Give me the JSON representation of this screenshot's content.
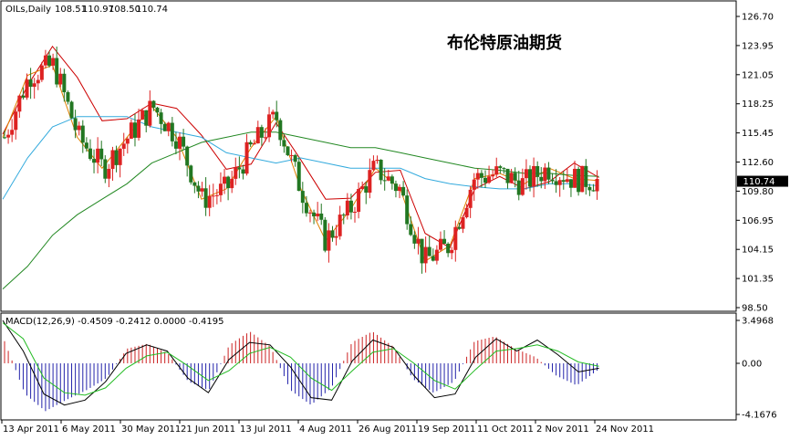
{
  "chart_data": [
    {
      "type": "candlestick",
      "symbol_line": "OILs,Daily",
      "ohlc_readout": [
        "108.51",
        "110.97",
        "108.50",
        "110.74"
      ],
      "title": "布伦特原油期货",
      "y_ticks": [
        "126.70",
        "123.95",
        "121.05",
        "118.25",
        "115.45",
        "112.60",
        "109.80",
        "106.95",
        "104.15",
        "101.35",
        "98.50"
      ],
      "ylim": [
        98.5,
        126.7
      ],
      "last_price": "110.74",
      "moving_averages": [
        {
          "color": "#cc0000",
          "values": [
            115.3,
            120.0,
            123.8,
            120.8,
            116.6,
            116.8,
            118.3,
            117.8,
            115.2,
            111.9,
            112.4,
            116.4,
            112.8,
            109.0,
            109.1,
            111.6,
            111.8,
            105.7,
            104.3,
            110.0,
            111.2,
            110.0,
            110.7,
            112.5,
            111.1
          ]
        },
        {
          "color": "#e08000",
          "values": [
            115.0,
            121.0,
            122.0,
            115.0,
            112.0,
            115.0,
            118.0,
            115.0,
            109.0,
            110.0,
            114.0,
            117.0,
            110.0,
            105.0,
            108.0,
            112.0,
            110.0,
            103.0,
            104.5,
            111.0,
            111.5,
            110.5,
            112.0,
            111.0,
            110.8
          ]
        },
        {
          "color": "#33aadd",
          "values": [
            109.0,
            113.0,
            116.0,
            117.0,
            117.0,
            117.0,
            116.0,
            115.5,
            115.0,
            113.5,
            113.0,
            112.5,
            113.0,
            112.5,
            112.0,
            112.0,
            112.0,
            111.0,
            110.5,
            110.2,
            110.0,
            110.0,
            110.5,
            110.5,
            110.3
          ]
        },
        {
          "color": "#228822",
          "values": [
            100.3,
            102.5,
            105.5,
            107.5,
            109.0,
            110.5,
            112.5,
            113.5,
            114.5,
            115.0,
            115.5,
            115.5,
            115.0,
            114.5,
            114.0,
            114.0,
            113.5,
            113.0,
            112.5,
            112.0,
            111.8,
            111.5,
            111.5,
            111.3,
            111.2
          ]
        }
      ]
    },
    {
      "type": "histogram",
      "indicator_line": "MACD(12,26,9) -0.4509 -0.2412 0.0000 -0.4195",
      "y_ticks": [
        "3.4968",
        "0.00",
        "-4.1676"
      ],
      "ylim": [
        -4.1676,
        3.4968
      ],
      "histogram": [
        1.8,
        -2.5,
        -3.9,
        -3.0,
        -2.2,
        -1.2,
        1.2,
        1.6,
        0.8,
        -1.5,
        -2.2,
        1.5,
        2.6,
        1.4,
        -2.2,
        -3.4,
        -2.0,
        1.7,
        2.6,
        1.4,
        -1.3,
        -2.4,
        -1.5,
        1.8,
        2.2,
        1.2,
        0.5,
        -1.0,
        -1.8,
        -0.6
      ],
      "macd_line": [
        3.5,
        1.0,
        -2.5,
        -3.4,
        -3.0,
        -1.5,
        0.8,
        1.5,
        1.0,
        -1.2,
        -2.4,
        0.3,
        1.7,
        1.5,
        -0.3,
        -2.8,
        -3.0,
        0.2,
        1.9,
        1.3,
        -1.0,
        -2.8,
        -2.5,
        0.5,
        2.0,
        1.0,
        1.9,
        0.7,
        -0.7,
        -0.4
      ],
      "signal_line": [
        3.3,
        2.0,
        -1.2,
        -2.4,
        -2.6,
        -2.0,
        -0.4,
        0.6,
        0.9,
        -0.2,
        -1.4,
        -0.6,
        0.8,
        1.3,
        0.5,
        -1.2,
        -2.2,
        -0.6,
        0.9,
        1.2,
        0.0,
        -1.4,
        -2.1,
        -0.5,
        1.0,
        1.2,
        1.5,
        1.0,
        0.1,
        -0.24
      ]
    }
  ],
  "x_ticks": [
    "13 Apr 2011",
    "6 May 2011",
    "30 May 2011",
    "21 Jun 2011",
    "13 Jul 2011",
    "4 Aug 2011",
    "26 Aug 2011",
    "19 Sep 2011",
    "11 Oct 2011",
    "2 Nov 2011",
    "24 Nov 2011"
  ],
  "colors": {
    "bull": "#dd2222",
    "bear": "#227722",
    "macd": "#000000",
    "signal": "#22bb22",
    "hist_up": "#cc2222",
    "hist_down": "#2222aa",
    "last_tag": "#000000"
  }
}
